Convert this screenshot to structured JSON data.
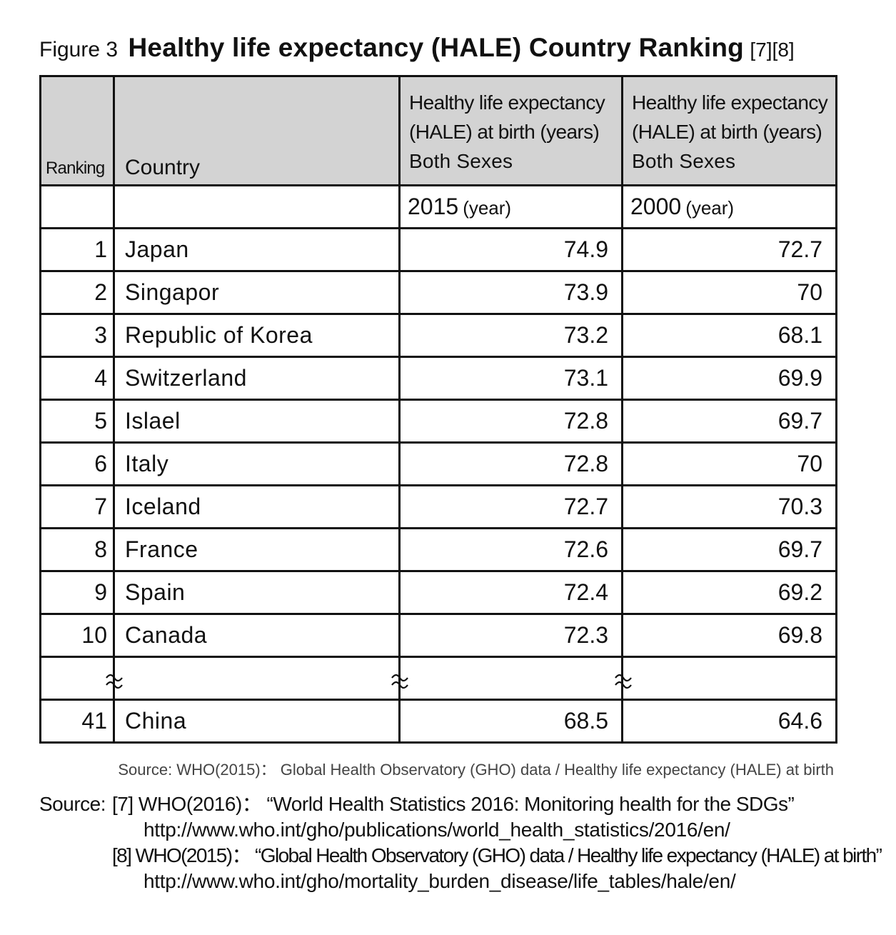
{
  "figure": {
    "label": "Figure 3",
    "title": "Healthy life expectancy (HALE) Country Ranking",
    "refs": "[7][8]"
  },
  "table": {
    "headers": {
      "ranking": "Ranking",
      "country": "Country",
      "metric_line1": "Healthy life expectancy",
      "metric_line2": "(HALE) at birth (years)",
      "metric_line3": "Both Sexes"
    },
    "years": [
      {
        "year": "2015",
        "unit": "(year)"
      },
      {
        "year": "2000",
        "unit": "(year)"
      }
    ],
    "rows": [
      {
        "rank": "1",
        "country": "Japan",
        "v2015": "74.9",
        "v2000": "72.7"
      },
      {
        "rank": "2",
        "country": "Singapor",
        "v2015": "73.9",
        "v2000": "70"
      },
      {
        "rank": "3",
        "country": "Republic of Korea",
        "v2015": "73.2",
        "v2000": "68.1"
      },
      {
        "rank": "4",
        "country": "Switzerland",
        "v2015": "73.1",
        "v2000": "69.9"
      },
      {
        "rank": "5",
        "country": "Islael",
        "v2015": "72.8",
        "v2000": "69.7"
      },
      {
        "rank": "6",
        "country": "Italy",
        "v2015": "72.8",
        "v2000": "70"
      },
      {
        "rank": "7",
        "country": "Iceland",
        "v2015": "72.7",
        "v2000": "70.3"
      },
      {
        "rank": "8",
        "country": "France",
        "v2015": "72.6",
        "v2000": "69.7"
      },
      {
        "rank": "9",
        "country": "Spain",
        "v2015": "72.4",
        "v2000": "69.2"
      },
      {
        "rank": "10",
        "country": "Canada",
        "v2015": "72.3",
        "v2000": "69.8"
      }
    ],
    "last_row": {
      "rank": "41",
      "country": "China",
      "v2015": "68.5",
      "v2000": "64.6"
    }
  },
  "source_note": "Source:  WHO(2015)： Global Health Observatory (GHO) data / Healthy life expectancy (HALE) at birth",
  "references": {
    "label": "Source:",
    "ref7_text": "[7] WHO(2016)： “World Health Statistics 2016: Monitoring health for the SDGs”",
    "ref7_url": "http://www.who.int/gho/publications/world_health_statistics/2016/en/",
    "ref8_text": "[8] WHO(2015)： “Global Health Observatory (GHO) data / Healthy life expectancy (HALE) at birth”",
    "ref8_url": "http://www.who.int/gho/mortality_burden_disease/life_tables/hale/en/"
  }
}
